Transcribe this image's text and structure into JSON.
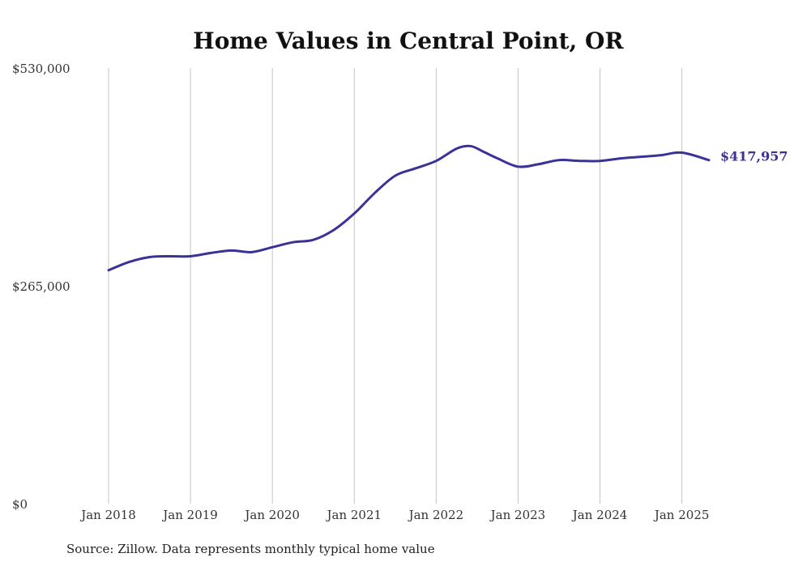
{
  "chart_data": {
    "type": "line",
    "title": "Home Values in Central Point, OR",
    "xlabel": "",
    "ylabel": "",
    "ylim": [
      0,
      530000
    ],
    "y_ticks": [
      {
        "value": 0,
        "label": "$0"
      },
      {
        "value": 265000,
        "label": "$265,000"
      },
      {
        "value": 530000,
        "label": "$530,000"
      }
    ],
    "x_ticks": [
      {
        "value": 2018,
        "label": "Jan 2018"
      },
      {
        "value": 2019,
        "label": "Jan 2019"
      },
      {
        "value": 2020,
        "label": "Jan 2020"
      },
      {
        "value": 2021,
        "label": "Jan 2021"
      },
      {
        "value": 2022,
        "label": "Jan 2022"
      },
      {
        "value": 2023,
        "label": "Jan 2023"
      },
      {
        "value": 2024,
        "label": "Jan 2024"
      },
      {
        "value": 2025,
        "label": "Jan 2025"
      }
    ],
    "xlim": [
      2018,
      2025.33
    ],
    "vertical_grid": true,
    "horizontal_grid": false,
    "series": [
      {
        "color": "#3b3297",
        "end_label": "$417,957",
        "x": [
          2018.0,
          2018.25,
          2018.5,
          2018.75,
          2019.0,
          2019.25,
          2019.5,
          2019.75,
          2020.0,
          2020.25,
          2020.5,
          2020.75,
          2021.0,
          2021.25,
          2021.5,
          2021.75,
          2022.0,
          2022.25,
          2022.42,
          2022.58,
          2022.75,
          2023.0,
          2023.25,
          2023.5,
          2023.75,
          2024.0,
          2024.25,
          2024.5,
          2024.75,
          2025.0,
          2025.33
        ],
        "y": [
          284000,
          294000,
          300000,
          301000,
          301000,
          305000,
          308000,
          306000,
          312000,
          318000,
          321000,
          333000,
          353000,
          378000,
          399000,
          408000,
          417000,
          432000,
          435000,
          428000,
          420000,
          410000,
          413000,
          418000,
          417000,
          417000,
          420000,
          422000,
          424000,
          427000,
          417957
        ]
      }
    ]
  },
  "footer": {
    "source": "Source: Zillow. Data represents monthly typical home value"
  }
}
